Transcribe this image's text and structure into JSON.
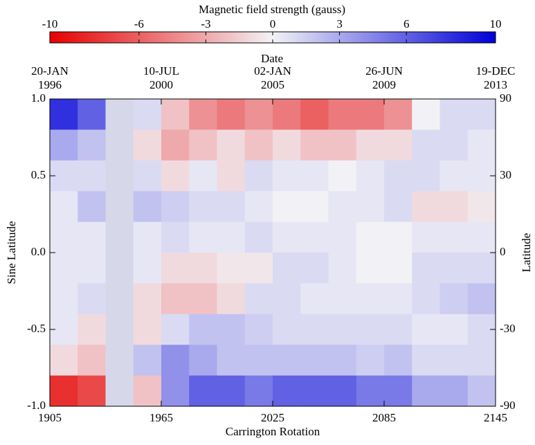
{
  "chart_data": {
    "type": "heatmap",
    "colorbar": {
      "title": "Magnetic field strength (gauss)",
      "lim": [
        -10,
        10
      ],
      "ticks": [
        -10,
        -6,
        -3,
        0,
        3,
        6,
        10
      ]
    },
    "colormap": [
      "#e60000",
      "#f2f2f6",
      "#0000d8"
    ],
    "missing_color": "#d6d8ea",
    "top_axis_label": "Date",
    "top_ticks": [
      {
        "value": 1905,
        "label": "20-JAN",
        "sublabel": "1996"
      },
      {
        "value": 1965,
        "label": "10-JUL",
        "sublabel": "2000"
      },
      {
        "value": 2025,
        "label": "02-JAN",
        "sublabel": "2005"
      },
      {
        "value": 2085,
        "label": "26-JUN",
        "sublabel": "2009"
      },
      {
        "value": 2145,
        "label": "19-DEC",
        "sublabel": "2013"
      }
    ],
    "xlabel": "Carrington Rotation",
    "ylabel": "Sine Latitude",
    "y2label": "Latitude",
    "xlim": [
      1905,
      2145
    ],
    "xticks": [
      1905,
      1965,
      2025,
      2085,
      2145
    ],
    "ylim": [
      -1,
      1
    ],
    "yticks": [
      {
        "value": 1,
        "label": "1.0"
      },
      0.5,
      {
        "value": 0,
        "label": "0.0"
      },
      -0.5,
      {
        "value": -1,
        "label": "-1.0"
      }
    ],
    "y2scale": "sine",
    "y2ticks": [
      90,
      30,
      0,
      -30,
      -90
    ],
    "xbins": [
      1905,
      1920,
      1935,
      1950,
      1965,
      1980,
      1995,
      2010,
      2025,
      2040,
      2055,
      2070,
      2085,
      2100,
      2115,
      2130,
      2145
    ],
    "ybins": [
      1,
      0.8,
      0.6,
      0.4,
      0.2,
      0,
      -0.2,
      -0.4,
      -0.6,
      -0.8,
      -1
    ],
    "z": [
      [
        8,
        6,
        null,
        1,
        -2,
        -4,
        -5,
        -4,
        -5,
        -6,
        -5,
        -5,
        -4,
        0,
        1,
        1
      ],
      [
        3,
        2,
        null,
        -1,
        -3,
        -2,
        -1,
        -2,
        -1,
        -2,
        -2,
        -1,
        -1,
        1,
        1,
        0.5
      ],
      [
        1,
        1,
        null,
        1,
        -1,
        0.5,
        -1,
        1,
        0.5,
        0.5,
        0,
        0.5,
        1,
        1,
        0.5,
        0.5
      ],
      [
        0.5,
        2,
        null,
        2,
        1.5,
        1,
        1,
        0.5,
        0,
        0,
        0.5,
        0.5,
        1,
        -1,
        -1,
        -0.5
      ],
      [
        0.5,
        0.5,
        null,
        0.5,
        1,
        0.5,
        0.5,
        1,
        0.5,
        0.5,
        0.5,
        0,
        0,
        0.5,
        0.5,
        0.5
      ],
      [
        0.5,
        0.5,
        null,
        0.5,
        -1,
        -1,
        -0.5,
        -0.5,
        1,
        1,
        0.5,
        0,
        0,
        1,
        1,
        1
      ],
      [
        0.5,
        1,
        null,
        -1,
        -2,
        -2,
        -1,
        1,
        1,
        0.5,
        0.5,
        0.5,
        0.5,
        1,
        1.5,
        2
      ],
      [
        0.5,
        -1,
        null,
        -1,
        1,
        2,
        2,
        1.5,
        1,
        1,
        1,
        1,
        1,
        0.5,
        0.5,
        1
      ],
      [
        -1,
        -2,
        null,
        2,
        4,
        3,
        2,
        2,
        2,
        2,
        2,
        1.5,
        2,
        1,
        1,
        1
      ],
      [
        -8,
        -7,
        null,
        -2,
        4,
        6,
        6,
        5,
        6,
        6,
        6,
        5,
        5,
        3,
        3,
        2
      ]
    ]
  }
}
